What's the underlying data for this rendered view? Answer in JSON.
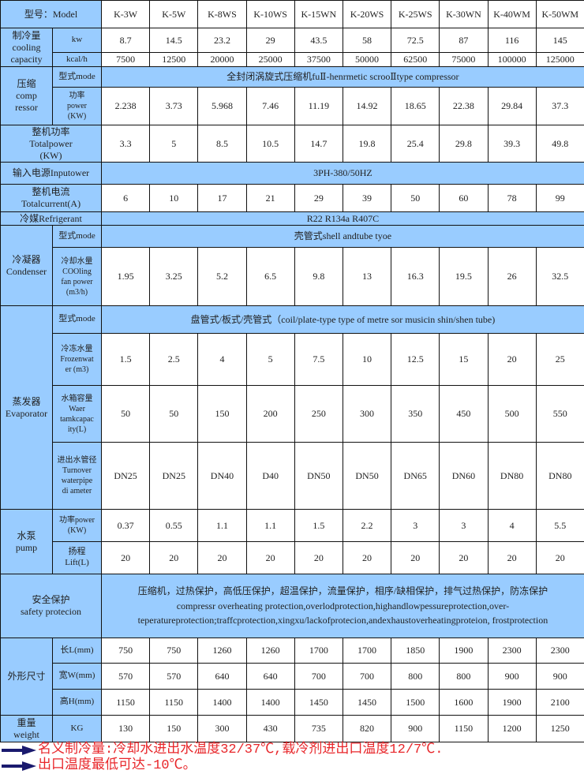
{
  "colors": {
    "label_bg": "#99ccff",
    "note_text": "#e8262a",
    "arrow": "#1a1a6e"
  },
  "header": {
    "label": "型号：Model",
    "models": [
      "K-3W",
      "K-5W",
      "K-8WS",
      "K-10WS",
      "K-15WN",
      "K-20WS",
      "K-25WS",
      "K-30WN",
      "K-40WM",
      "K-50WM"
    ]
  },
  "sections": [
    {
      "label": "制冷量\ncooling\ncapacity",
      "rows": [
        {
          "sub": "kw",
          "values": [
            "8.7",
            "14.5",
            "23.2",
            "29",
            "43.5",
            "58",
            "72.5",
            "87",
            "116",
            "145"
          ]
        },
        {
          "sub": "kcal/h",
          "values": [
            "7500",
            "12500",
            "20000",
            "25000",
            "37500",
            "50000",
            "62500",
            "75000",
            "100000",
            "125000"
          ]
        }
      ]
    },
    {
      "label": "压缩\ncomp\nressor",
      "rows": [
        {
          "sub": "型式mode",
          "span": "全封闭涡旋式压缩机fuⅡ-henrmetic scrooⅡtype compressor"
        },
        {
          "sub": "功率\npower\n(KW)",
          "values": [
            "2.238",
            "3.73",
            "5.968",
            "7.46",
            "11.19",
            "14.92",
            "18.65",
            "22.38",
            "29.84",
            "37.3"
          ]
        }
      ]
    },
    {
      "label": "整机功率\nTotalpower\n(KW)",
      "values": [
        "3.3",
        "5",
        "8.5",
        "10.5",
        "14.7",
        "19.8",
        "25.4",
        "29.8",
        "39.3",
        "49.8"
      ]
    },
    {
      "label": "输入电源Inputower",
      "span": "3PH-380/50HZ"
    },
    {
      "label": "整机电流\nTotalcurrent(A)",
      "values": [
        "6",
        "10",
        "17",
        "21",
        "29",
        "39",
        "50",
        "60",
        "78",
        "99"
      ]
    },
    {
      "label": "冷媒Refrigerant",
      "span": "R22 R134a R407C"
    },
    {
      "label": "冷凝器\nCondenser",
      "rows": [
        {
          "sub": "型式mode",
          "span": "壳管式shell andtube tyoe"
        },
        {
          "sub": "冷却水量\nCOOling\nfan power\n(m3/h)",
          "values": [
            "1.95",
            "3.25",
            "5.2",
            "6.5",
            "9.8",
            "13",
            "16.3",
            "19.5",
            "26",
            "32.5"
          ]
        }
      ]
    },
    {
      "label": "蒸发器\nEvaporator",
      "rows": [
        {
          "sub": "型式mode",
          "span": "盘管式/板式/壳管式（coil/plate-type type of metre sor musicin shin/shen tube)"
        },
        {
          "sub": "冷冻水量\nFrozenwat\ner (m3)",
          "values": [
            "1.5",
            "2.5",
            "4",
            "5",
            "7.5",
            "10",
            "12.5",
            "15",
            "20",
            "25"
          ]
        },
        {
          "sub": "水箱容量\nWaer\ntamkcapac\nity(L)",
          "values": [
            "50",
            "50",
            "150",
            "200",
            "250",
            "300",
            "350",
            "450",
            "500",
            "550"
          ]
        },
        {
          "sub": "进出水管径\nTurnover\nwaterpipe\ndi ameter",
          "values": [
            "DN25",
            "DN25",
            "DN40",
            "D40",
            "DN50",
            "DN50",
            "DN65",
            "DN60",
            "DN80",
            "DN80"
          ]
        }
      ]
    },
    {
      "label": "水泵\npump",
      "rows": [
        {
          "sub": "功率power\n(KW)",
          "values": [
            "0.37",
            "0.55",
            "1.1",
            "1.1",
            "1.5",
            "2.2",
            "3",
            "3",
            "4",
            "5.5"
          ]
        },
        {
          "sub": "扬程\nLift(L)",
          "values": [
            "20",
            "20",
            "20",
            "20",
            "20",
            "20",
            "20",
            "20",
            "20",
            "20"
          ]
        }
      ]
    },
    {
      "label": "安全保护\nsafety protecion",
      "span": "压缩机，过热保护，高低压保护，超温保护，流量保护，相序/缺相保护，排气过热保护，防冻保护\ncompressr overheating protection,overlodprotection,highandlowpessureprotection,over-teperatureprotection;traffcprotection,xingxu/lackofprotecion,andexhaustoverheatingproteion,     frostprotection"
    },
    {
      "label": "外形尺寸",
      "rows": [
        {
          "sub": "长L(mm)",
          "values": [
            "750",
            "750",
            "1260",
            "1260",
            "1700",
            "1700",
            "1850",
            "1900",
            "2300",
            "2300"
          ]
        },
        {
          "sub": "宽W(mm)",
          "values": [
            "570",
            "570",
            "640",
            "640",
            "700",
            "700",
            "800",
            "800",
            "900",
            "900"
          ]
        },
        {
          "sub": "高H(mm)",
          "values": [
            "1150",
            "1150",
            "1400",
            "1400",
            "1450",
            "1450",
            "1500",
            "1600",
            "1900",
            "2100"
          ]
        }
      ]
    },
    {
      "label": "重量\nweight",
      "rows": [
        {
          "sub": "KG",
          "values": [
            "130",
            "150",
            "300",
            "430",
            "735",
            "820",
            "900",
            "1150",
            "1200",
            "1250"
          ]
        }
      ]
    }
  ],
  "notes": [
    "名义制冷量:冷却水进出水温度32/37℃,载冷剂进出口温度12/7℃.",
    "出口温度最低可达-10℃。"
  ]
}
